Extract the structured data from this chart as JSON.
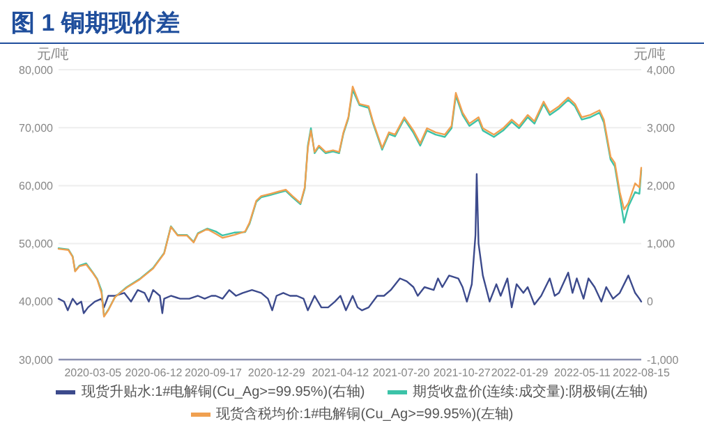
{
  "chart_data": {
    "type": "line",
    "title": "图 1 铜期现价差",
    "ylabel": "元/吨",
    "y2label": "元/吨",
    "legend": "bottom",
    "grid": "y",
    "line_style": "solid",
    "marker": "none",
    "xlim": [
      "2020-01-09",
      "2022-08-15"
    ],
    "xticks": [
      "2020-03-05",
      "2020-06-12",
      "2020-09-17",
      "2020-12-29",
      "2021-04-12",
      "2021-07-20",
      "2021-10-27",
      "2022-01-29",
      "2022-05-11",
      "2022-08-15"
    ],
    "ylim": [
      30000,
      80000
    ],
    "yticks": [
      {
        "value": 30000,
        "label": "30,000"
      },
      {
        "value": 40000,
        "label": "40,000"
      },
      {
        "value": 50000,
        "label": "50,000"
      },
      {
        "value": 60000,
        "label": "60,000"
      },
      {
        "value": 70000,
        "label": "70,000"
      },
      {
        "value": 80000,
        "label": "80,000"
      }
    ],
    "y2lim": [
      -1000,
      4000
    ],
    "y2ticks": [
      {
        "value": -1000,
        "label": "-1,000"
      },
      0,
      {
        "value": 1000,
        "label": "1,000"
      },
      {
        "value": 2000,
        "label": "2,000"
      },
      {
        "value": 3000,
        "label": "3,000"
      },
      {
        "value": 4000,
        "label": "4,000"
      }
    ],
    "x": [
      "2020-01-09",
      "2020-01-25",
      "2020-02-01",
      "2020-02-05",
      "2020-02-12",
      "2020-02-23",
      "2020-03-05",
      "2020-03-12",
      "2020-03-19",
      "2020-03-23",
      "2020-03-30",
      "2020-04-10",
      "2020-04-29",
      "2020-05-20",
      "2020-06-11",
      "2020-06-29",
      "2020-07-10",
      "2020-07-21",
      "2020-08-05",
      "2020-08-16",
      "2020-08-23",
      "2020-09-07",
      "2020-09-21",
      "2020-10-02",
      "2020-10-21",
      "2020-11-08",
      "2020-11-15",
      "2020-11-26",
      "2020-12-04",
      "2020-12-19",
      "2021-01-02",
      "2021-01-13",
      "2021-01-24",
      "2021-02-06",
      "2021-02-13",
      "2021-02-18",
      "2021-02-23",
      "2021-03-01",
      "2021-03-08",
      "2021-03-19",
      "2021-03-31",
      "2021-04-10",
      "2021-04-17",
      "2021-04-25",
      "2021-05-02",
      "2021-05-13",
      "2021-05-28",
      "2021-06-04",
      "2021-06-19",
      "2021-06-30",
      "2021-07-10",
      "2021-07-25",
      "2021-08-09",
      "2021-08-20",
      "2021-08-31",
      "2021-09-14",
      "2021-09-29",
      "2021-10-10",
      "2021-10-17",
      "2021-10-28",
      "2021-11-08",
      "2021-11-23",
      "2021-11-30",
      "2021-12-18",
      "2022-01-02",
      "2022-01-16",
      "2022-01-28",
      "2022-02-11",
      "2022-02-22",
      "2022-03-09",
      "2022-03-19",
      "2022-04-03",
      "2022-04-18",
      "2022-04-29",
      "2022-05-10",
      "2022-05-24",
      "2022-06-08",
      "2022-06-15",
      "2022-06-26",
      "2022-07-03",
      "2022-07-11",
      "2022-07-18",
      "2022-07-25",
      "2022-08-05",
      "2022-08-12",
      "2022-08-15"
    ],
    "series": [
      {
        "name": "现货升贴水:1#电解铜(Cu_Ag>=99.95%)(右轴)",
        "color": "#3c4a8c",
        "axis": "y2",
        "x": [
          "2020-01-09",
          "2020-01-18",
          "2020-01-24",
          "2020-02-01",
          "2020-02-08",
          "2020-02-15",
          "2020-02-19",
          "2020-02-26",
          "2020-03-08",
          "2020-03-19",
          "2020-03-23",
          "2020-03-30",
          "2020-04-10",
          "2020-04-25",
          "2020-05-06",
          "2020-05-17",
          "2020-05-28",
          "2020-06-04",
          "2020-06-11",
          "2020-06-22",
          "2020-06-26",
          "2020-06-29",
          "2020-07-10",
          "2020-07-25",
          "2020-08-09",
          "2020-08-23",
          "2020-09-03",
          "2020-09-14",
          "2020-09-21",
          "2020-10-02",
          "2020-10-13",
          "2020-10-24",
          "2020-11-04",
          "2020-11-19",
          "2020-12-04",
          "2020-12-15",
          "2020-12-22",
          "2020-12-29",
          "2021-01-09",
          "2021-01-20",
          "2021-01-31",
          "2021-02-11",
          "2021-02-18",
          "2021-03-01",
          "2021-03-12",
          "2021-03-23",
          "2021-04-03",
          "2021-04-12",
          "2021-04-21",
          "2021-05-02",
          "2021-05-10",
          "2021-05-17",
          "2021-05-28",
          "2021-06-11",
          "2021-06-22",
          "2021-07-03",
          "2021-07-18",
          "2021-07-29",
          "2021-08-09",
          "2021-08-16",
          "2021-08-27",
          "2021-09-11",
          "2021-09-18",
          "2021-09-25",
          "2021-10-06",
          "2021-10-21",
          "2021-10-28",
          "2021-11-04",
          "2021-11-12",
          "2021-11-18",
          "2021-11-20",
          "2021-11-23",
          "2021-11-30",
          "2021-12-11",
          "2021-12-22",
          "2021-12-29",
          "2022-01-09",
          "2022-01-16",
          "2022-01-24",
          "2022-02-04",
          "2022-02-11",
          "2022-02-22",
          "2022-03-05",
          "2022-03-19",
          "2022-03-27",
          "2022-04-03",
          "2022-04-18",
          "2022-04-25",
          "2022-05-02",
          "2022-05-13",
          "2022-05-21",
          "2022-05-31",
          "2022-06-11",
          "2022-06-19",
          "2022-06-30",
          "2022-07-11",
          "2022-07-25",
          "2022-08-05",
          "2022-08-12",
          "2022-08-15"
        ],
        "values": [
          50,
          0,
          -150,
          50,
          -50,
          0,
          -200,
          -100,
          0,
          50,
          -100,
          100,
          100,
          150,
          0,
          200,
          150,
          0,
          200,
          100,
          -200,
          50,
          100,
          50,
          50,
          100,
          50,
          100,
          100,
          50,
          200,
          100,
          150,
          200,
          150,
          50,
          -150,
          100,
          150,
          100,
          100,
          50,
          -150,
          100,
          -100,
          -100,
          0,
          100,
          -150,
          100,
          -100,
          -150,
          -100,
          100,
          100,
          200,
          400,
          350,
          250,
          100,
          250,
          200,
          400,
          250,
          450,
          400,
          250,
          0,
          300,
          1150,
          2200,
          1000,
          450,
          0,
          300,
          100,
          400,
          -100,
          300,
          150,
          250,
          -50,
          100,
          400,
          100,
          150,
          500,
          150,
          400,
          50,
          400,
          250,
          0,
          250,
          50,
          150,
          450,
          150,
          50,
          0
        ]
      },
      {
        "name": "期货收盘价(连续:成交量):阴极铜(左轴)",
        "color": "#3cc3a8",
        "values": [
          49200,
          49000,
          47800,
          45300,
          46200,
          46600,
          45000,
          43900,
          41900,
          37500,
          38600,
          40800,
          42500,
          43900,
          45800,
          48400,
          53000,
          51500,
          51500,
          50300,
          51800,
          52600,
          52100,
          51400,
          51900,
          52000,
          53400,
          57200,
          58000,
          58400,
          58800,
          59100,
          58000,
          56800,
          59500,
          66900,
          69900,
          65600,
          66700,
          65600,
          65900,
          65600,
          69000,
          71600,
          76500,
          73900,
          73400,
          70800,
          66200,
          68900,
          68500,
          71500,
          69100,
          66900,
          69500,
          68800,
          68400,
          69900,
          75500,
          72200,
          70300,
          71400,
          69500,
          68400,
          69500,
          71000,
          69900,
          71800,
          70700,
          74100,
          72200,
          73300,
          74800,
          73700,
          71400,
          71800,
          72600,
          70900,
          64500,
          63300,
          58200,
          53600,
          56400,
          58900,
          58600,
          62700
        ]
      },
      {
        "name": "现货含税均价:1#电解铜(Cu_Ag>=99.95%)(左轴)",
        "color": "#f0a050",
        "values": [
          49100,
          48900,
          47700,
          45200,
          46100,
          46400,
          44900,
          43800,
          41500,
          37400,
          38500,
          40800,
          42400,
          43800,
          45700,
          48300,
          52900,
          51400,
          51400,
          50200,
          51700,
          52500,
          51700,
          51000,
          51500,
          52100,
          53600,
          57400,
          58200,
          58600,
          59000,
          59300,
          58200,
          57000,
          59700,
          66500,
          69500,
          65800,
          66900,
          65800,
          66100,
          65800,
          69200,
          71800,
          77100,
          74100,
          73700,
          71100,
          66500,
          69200,
          68800,
          71800,
          69500,
          67300,
          69900,
          69200,
          68800,
          70300,
          76000,
          72600,
          70700,
          71800,
          69900,
          68800,
          69900,
          71400,
          70300,
          72200,
          71100,
          74500,
          72600,
          73700,
          75200,
          74100,
          71800,
          72200,
          73000,
          71400,
          65000,
          63900,
          58900,
          55900,
          57000,
          60400,
          59700,
          63100
        ]
      }
    ]
  }
}
